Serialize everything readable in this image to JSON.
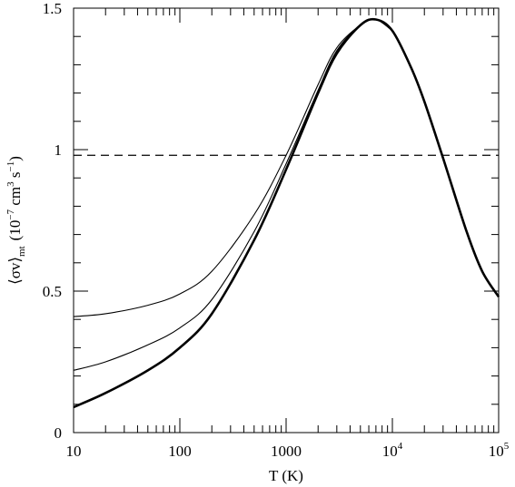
{
  "chart_data": {
    "type": "line",
    "xlabel": "T (K)",
    "ylabel": "⟨σv⟩mt (10⁻⁷ cm³ s⁻¹)",
    "ylabel_parts": {
      "bracket_open": "⟨σv⟩",
      "subscript": "mt",
      "unit_open": "(10",
      "unit_exp1": "−7",
      "unit_mid": " cm",
      "unit_exp2": "3",
      "unit_s": " s",
      "unit_exp3": "−1",
      "unit_close": ")"
    },
    "x_scale": "log",
    "xlim": [
      10,
      100000
    ],
    "ylim": [
      0,
      1.5
    ],
    "grid": false,
    "x_ticks": [
      {
        "value": 10,
        "base": "10",
        "exp": ""
      },
      {
        "value": 100,
        "base": "100",
        "exp": ""
      },
      {
        "value": 1000,
        "base": "1000",
        "exp": ""
      },
      {
        "value": 10000,
        "base": "10",
        "exp": "4"
      },
      {
        "value": 100000,
        "base": "10",
        "exp": "5"
      }
    ],
    "y_ticks": [
      {
        "value": 0,
        "label": "0"
      },
      {
        "value": 0.5,
        "label": "0.5"
      },
      {
        "value": 1,
        "label": "1"
      },
      {
        "value": 1.5,
        "label": "1.5"
      }
    ],
    "reference_lines": [
      {
        "orientation": "horizontal",
        "y": 0.98,
        "style": "dashed"
      }
    ],
    "series": [
      {
        "line_width": "thick",
        "x": [
          10,
          20,
          50,
          100,
          200,
          500,
          1000,
          2000,
          3000,
          5000,
          7000,
          10000,
          15000,
          20000,
          30000,
          50000,
          70000,
          100000
        ],
        "y": [
          0.09,
          0.14,
          0.22,
          0.3,
          0.42,
          0.68,
          0.93,
          1.2,
          1.34,
          1.44,
          1.46,
          1.42,
          1.29,
          1.17,
          0.97,
          0.71,
          0.57,
          0.48
        ]
      },
      {
        "line_width": "thin",
        "x": [
          10,
          20,
          50,
          100,
          200,
          500,
          1000,
          2000,
          3000,
          5000,
          7000,
          10000
        ],
        "y": [
          0.22,
          0.25,
          0.31,
          0.37,
          0.47,
          0.71,
          0.95,
          1.21,
          1.35,
          1.44,
          1.46,
          1.42
        ]
      },
      {
        "line_width": "thin",
        "x": [
          10,
          20,
          50,
          100,
          200,
          500,
          1000,
          2000,
          3000,
          5000,
          7000,
          10000
        ],
        "y": [
          0.41,
          0.42,
          0.45,
          0.49,
          0.57,
          0.77,
          0.98,
          1.23,
          1.36,
          1.44,
          1.46,
          1.42
        ]
      }
    ]
  }
}
